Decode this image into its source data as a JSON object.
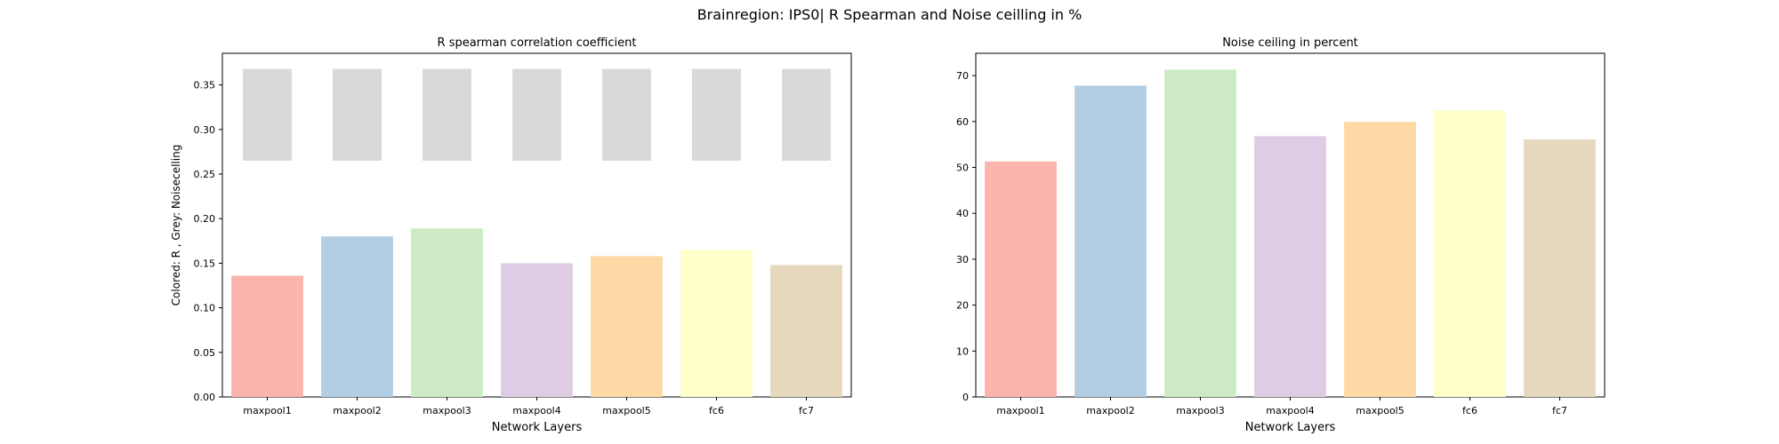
{
  "figure": {
    "suptitle": "Brainregion: IPS0| R Spearman and Noise ceilling in %"
  },
  "chart_data": [
    {
      "type": "bar",
      "title": "R spearman correlation coefficient",
      "xlabel": "Network Layers",
      "ylabel": "Colored: R , Grey: Noisecelling",
      "categories": [
        "maxpool1",
        "maxpool2",
        "maxpool3",
        "maxpool4",
        "maxpool5",
        "fc6",
        "fc7"
      ],
      "series": [
        {
          "values": [
            0.136,
            0.18,
            0.189,
            0.15,
            0.158,
            0.165,
            0.148
          ]
        }
      ],
      "noise_ceiling": {
        "lower": [
          0.265,
          0.265,
          0.265,
          0.265,
          0.265,
          0.265,
          0.265
        ],
        "upper": [
          0.368,
          0.368,
          0.368,
          0.368,
          0.368,
          0.368,
          0.368
        ],
        "color": "#d9d9d9"
      },
      "ylim": [
        0,
        0.3855
      ],
      "yticks": [
        0.0,
        0.05,
        0.1,
        0.15,
        0.2,
        0.25,
        0.3,
        0.35
      ],
      "ytick_labels": [
        "0.00",
        "0.05",
        "0.10",
        "0.15",
        "0.20",
        "0.25",
        "0.30",
        "0.35"
      ],
      "colors": [
        "#fbb4ae",
        "#b3cde3",
        "#ccebc5",
        "#decbe4",
        "#fed9a6",
        "#ffffcc",
        "#e5d8bd"
      ],
      "grid": false
    },
    {
      "type": "bar",
      "title": "Noise ceiling in percent",
      "xlabel": "Network Layers",
      "ylabel": "",
      "categories": [
        "maxpool1",
        "maxpool2",
        "maxpool3",
        "maxpool4",
        "maxpool5",
        "fc6",
        "fc7"
      ],
      "series": [
        {
          "values": [
            51.3,
            67.8,
            71.3,
            56.8,
            59.9,
            62.4,
            56.1
          ]
        }
      ],
      "ylim": [
        0,
        74.86
      ],
      "yticks": [
        0,
        10,
        20,
        30,
        40,
        50,
        60,
        70
      ],
      "ytick_labels": [
        "0",
        "10",
        "20",
        "30",
        "40",
        "50",
        "60",
        "70"
      ],
      "colors": [
        "#fbb4ae",
        "#b3cde3",
        "#ccebc5",
        "#decbe4",
        "#fed9a6",
        "#ffffcc",
        "#e5d8bd"
      ],
      "grid": false
    }
  ]
}
